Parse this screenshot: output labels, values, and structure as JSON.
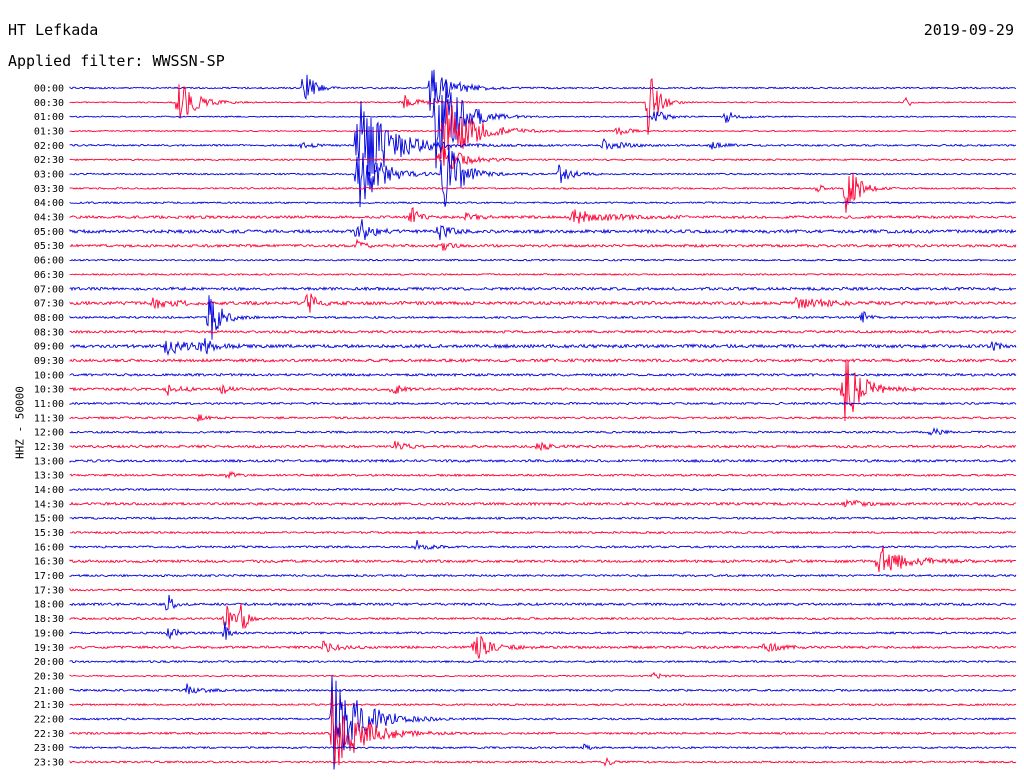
{
  "header": {
    "station": "HT Lefkada",
    "date": "2019-09-29",
    "filter": "Applied filter: WWSSN-SP"
  },
  "ylabel": "HHZ - 50000",
  "colors": {
    "even": "#0000dd",
    "odd": "#ff0033"
  },
  "chart_data": {
    "type": "line",
    "title": "HT Lefkada",
    "subtitle": "Applied filter: WWSSN-SP",
    "ylabel": "HHZ - 50000",
    "rows": [
      "00:00",
      "00:30",
      "01:00",
      "01:30",
      "02:00",
      "02:30",
      "03:00",
      "03:30",
      "04:00",
      "04:30",
      "05:00",
      "05:30",
      "06:00",
      "06:30",
      "07:00",
      "07:30",
      "08:00",
      "08:30",
      "09:00",
      "09:30",
      "10:00",
      "10:30",
      "11:00",
      "11:30",
      "12:00",
      "12:30",
      "13:00",
      "13:30",
      "14:00",
      "14:30",
      "15:00",
      "15:30",
      "16:00",
      "16:30",
      "17:00",
      "17:30",
      "18:00",
      "18:30",
      "19:00",
      "19:30",
      "20:00",
      "20:30",
      "21:00",
      "21:30",
      "22:00",
      "22:30",
      "23:00",
      "23:30"
    ],
    "minutes_per_row": 30,
    "noise": [
      0.8,
      0.6,
      0.6,
      0.6,
      0.9,
      0.8,
      0.8,
      0.8,
      0.8,
      1.3,
      1.6,
      1.3,
      0.8,
      0.8,
      1.4,
      1.6,
      1.0,
      1.2,
      1.6,
      1.4,
      1.2,
      1.3,
      1.0,
      1.0,
      1.0,
      1.2,
      1.2,
      1.0,
      1.0,
      1.3,
      1.0,
      1.0,
      1.0,
      1.3,
      1.0,
      0.9,
      1.2,
      1.0,
      1.0,
      1.2,
      0.9,
      0.7,
      1.0,
      0.9,
      0.9,
      1.0,
      0.9,
      0.9
    ],
    "events": [
      {
        "row": 0,
        "min": 7.4,
        "amp": 30,
        "dur": 0.6
      },
      {
        "row": 0,
        "min": 11.4,
        "amp": 25,
        "dur": 1.5
      },
      {
        "row": 1,
        "min": 3.4,
        "amp": 25,
        "dur": 1.2
      },
      {
        "row": 1,
        "min": 10.5,
        "amp": 10,
        "dur": 1.0
      },
      {
        "row": 1,
        "min": 18.3,
        "amp": 40,
        "dur": 0.7
      },
      {
        "row": 1,
        "min": 26.5,
        "amp": 8,
        "dur": 0.3
      },
      {
        "row": 2,
        "min": 11.6,
        "amp": 70,
        "dur": 1.5
      },
      {
        "row": 2,
        "min": 18.5,
        "amp": 9,
        "dur": 0.8
      },
      {
        "row": 2,
        "min": 20.8,
        "amp": 8,
        "dur": 0.8
      },
      {
        "row": 3,
        "min": 11.8,
        "amp": 40,
        "dur": 2.0
      },
      {
        "row": 3,
        "min": 17.3,
        "amp": 6,
        "dur": 0.8
      },
      {
        "row": 4,
        "min": 7.3,
        "amp": 4,
        "dur": 0.8
      },
      {
        "row": 4,
        "min": 9.1,
        "amp": 55,
        "dur": 2.2
      },
      {
        "row": 4,
        "min": 16.9,
        "amp": 7,
        "dur": 1.2
      },
      {
        "row": 4,
        "min": 20.3,
        "amp": 4,
        "dur": 1.0
      },
      {
        "row": 5,
        "min": 11.7,
        "amp": 18,
        "dur": 1.5
      },
      {
        "row": 6,
        "min": 9.1,
        "amp": 40,
        "dur": 1.5
      },
      {
        "row": 6,
        "min": 11.8,
        "amp": 45,
        "dur": 1.2
      },
      {
        "row": 6,
        "min": 15.5,
        "amp": 10,
        "dur": 0.9
      },
      {
        "row": 7,
        "min": 23.7,
        "amp": 5,
        "dur": 0.4
      },
      {
        "row": 7,
        "min": 24.6,
        "amp": 35,
        "dur": 0.8
      },
      {
        "row": 9,
        "min": 3.3,
        "amp": 4,
        "dur": 0.7
      },
      {
        "row": 9,
        "min": 10.8,
        "amp": 12,
        "dur": 0.5
      },
      {
        "row": 9,
        "min": 15.9,
        "amp": 8,
        "dur": 2.5
      },
      {
        "row": 9,
        "min": 12.5,
        "amp": 4,
        "dur": 1.0
      },
      {
        "row": 10,
        "min": 9.1,
        "amp": 18,
        "dur": 0.8
      },
      {
        "row": 10,
        "min": 11.7,
        "amp": 12,
        "dur": 0.6
      },
      {
        "row": 11,
        "min": 9.1,
        "amp": 6,
        "dur": 0.5
      },
      {
        "row": 11,
        "min": 11.8,
        "amp": 5,
        "dur": 0.5
      },
      {
        "row": 15,
        "min": 2.6,
        "amp": 5,
        "dur": 1.5
      },
      {
        "row": 15,
        "min": 7.5,
        "amp": 18,
        "dur": 0.5
      },
      {
        "row": 15,
        "min": 23.0,
        "amp": 6,
        "dur": 2.0
      },
      {
        "row": 16,
        "min": 4.4,
        "amp": 30,
        "dur": 0.8
      },
      {
        "row": 16,
        "min": 25.1,
        "amp": 8,
        "dur": 0.4
      },
      {
        "row": 18,
        "min": 3.0,
        "amp": 10,
        "dur": 1.8
      },
      {
        "row": 18,
        "min": 4.2,
        "amp": 10,
        "dur": 0.5
      },
      {
        "row": 18,
        "min": 29.3,
        "amp": 10,
        "dur": 0.3
      },
      {
        "row": 21,
        "min": 24.5,
        "amp": 45,
        "dur": 1.2
      },
      {
        "row": 21,
        "min": 3.1,
        "amp": 6,
        "dur": 0.8
      },
      {
        "row": 21,
        "min": 4.8,
        "amp": 7,
        "dur": 0.4
      },
      {
        "row": 21,
        "min": 10.2,
        "amp": 6,
        "dur": 0.7
      },
      {
        "row": 23,
        "min": 4.1,
        "amp": 9,
        "dur": 0.3
      },
      {
        "row": 24,
        "min": 27.3,
        "amp": 5,
        "dur": 0.7
      },
      {
        "row": 25,
        "min": 10.3,
        "amp": 5,
        "dur": 0.8
      },
      {
        "row": 25,
        "min": 14.8,
        "amp": 5,
        "dur": 0.8
      },
      {
        "row": 27,
        "min": 5.0,
        "amp": 6,
        "dur": 0.4
      },
      {
        "row": 29,
        "min": 24.6,
        "amp": 6,
        "dur": 0.8
      },
      {
        "row": 32,
        "min": 11.0,
        "amp": 6,
        "dur": 0.8
      },
      {
        "row": 33,
        "min": 25.6,
        "amp": 18,
        "dur": 1.8
      },
      {
        "row": 36,
        "min": 3.1,
        "amp": 15,
        "dur": 0.3
      },
      {
        "row": 37,
        "min": 4.9,
        "amp": 22,
        "dur": 0.5
      },
      {
        "row": 37,
        "min": 5.4,
        "amp": 20,
        "dur": 0.4
      },
      {
        "row": 38,
        "min": 3.1,
        "amp": 15,
        "dur": 0.4
      },
      {
        "row": 38,
        "min": 4.9,
        "amp": 12,
        "dur": 0.3
      },
      {
        "row": 39,
        "min": 8.0,
        "amp": 6,
        "dur": 1.0
      },
      {
        "row": 39,
        "min": 12.8,
        "amp": 16,
        "dur": 1.2
      },
      {
        "row": 39,
        "min": 22.0,
        "amp": 7,
        "dur": 1.0
      },
      {
        "row": 41,
        "min": 18.5,
        "amp": 4,
        "dur": 0.7
      },
      {
        "row": 42,
        "min": 3.7,
        "amp": 6,
        "dur": 0.9
      },
      {
        "row": 44,
        "min": 8.3,
        "amp": 55,
        "dur": 2.0
      },
      {
        "row": 45,
        "min": 8.3,
        "amp": 45,
        "dur": 2.0
      },
      {
        "row": 46,
        "min": 16.3,
        "amp": 5,
        "dur": 0.3
      },
      {
        "row": 47,
        "min": 17.0,
        "amp": 10,
        "dur": 0.3
      }
    ]
  }
}
